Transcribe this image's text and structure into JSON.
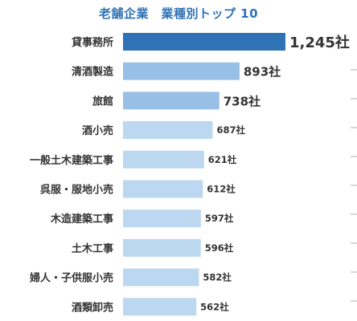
{
  "chart_data": {
    "type": "bar",
    "orientation": "horizontal",
    "title": "老舗企業　業種別トップ 10",
    "categories": [
      "貸事務所",
      "清酒製造",
      "旅館",
      "酒小売",
      "一般土木建築工事",
      "呉服・服地小売",
      "木造建築工事",
      "土木工事",
      "婦人・子供服小売",
      "酒類卸売"
    ],
    "values": [
      1245,
      893,
      738,
      687,
      621,
      612,
      597,
      596,
      582,
      562
    ],
    "value_labels": [
      "1,245社",
      "893社",
      "738社",
      "687社",
      "621社",
      "612社",
      "597社",
      "596社",
      "582社",
      "562社"
    ],
    "xlim": [
      0,
      1245
    ],
    "grid": false,
    "legend": "none",
    "colors": {
      "top1": "#2f72b6",
      "top2_3": "#98bfe6",
      "rest": "#bcd7f0",
      "title": "#2f72b6",
      "text": "#333333"
    }
  }
}
